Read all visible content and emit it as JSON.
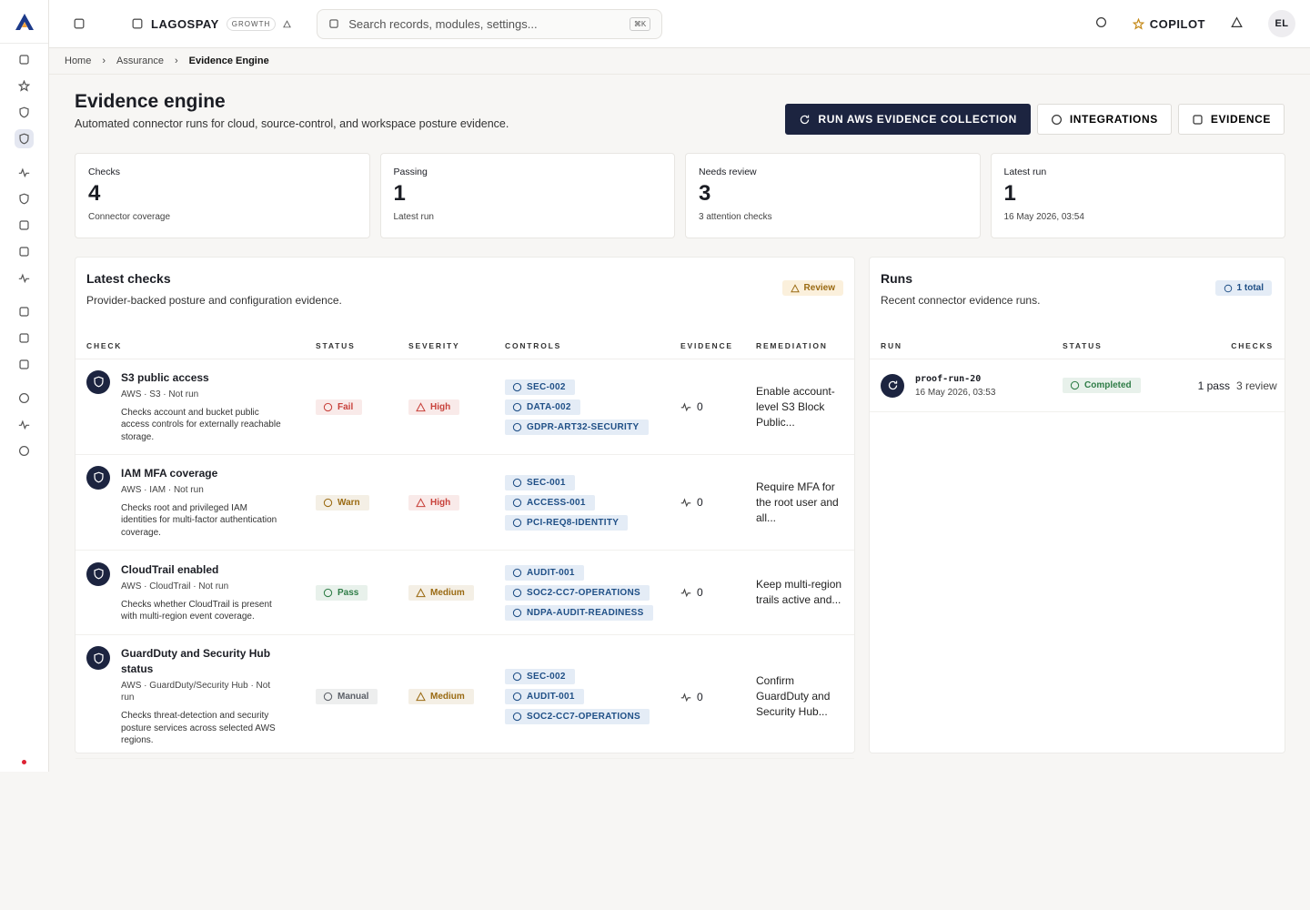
{
  "app": {
    "brand": "LAGOSPAY",
    "plan": "GROWTH",
    "search": "Search records, modules, settings...",
    "shortcut": "⌘K",
    "copilot": "COPILOT",
    "avatar": "EL"
  },
  "breadcrumb": [
    "Home",
    "Assurance",
    "Evidence Engine"
  ],
  "header": {
    "title": "Evidence engine",
    "subtitle": "Automated connector runs for cloud, source-control, and workspace posture evidence.",
    "actions": [
      "RUN AWS EVIDENCE COLLECTION",
      "INTEGRATIONS",
      "EVIDENCE"
    ]
  },
  "stats": [
    {
      "label": "Checks",
      "value": 4,
      "note": "Connector coverage"
    },
    {
      "label": "Passing",
      "value": 1,
      "note": "Latest run"
    },
    {
      "label": "Needs review",
      "value": 3,
      "note": "3 attention checks"
    },
    {
      "label": "Latest run",
      "value": 1,
      "note": "16 May 2026, 03:54"
    }
  ],
  "checks": {
    "title": "Latest checks",
    "subtitle": "Provider-backed posture and configuration evidence.",
    "badge": "Review",
    "columns": [
      "CHECK",
      "STATUS",
      "SEVERITY",
      "CONTROLS",
      "EVIDENCE",
      "REMEDIATION"
    ],
    "rows": [
      {
        "name": "S3 public access",
        "meta": "AWS · S3 · Not run",
        "description": "Checks account and bucket public access controls for externally reachable storage.",
        "status": {
          "label": "Fail",
          "color": "#c8413b"
        },
        "severity": {
          "label": "High",
          "color": "#c8413b"
        },
        "controls": [
          "SEC-002",
          "DATA-002",
          "GDPR-ART32-SECURITY"
        ],
        "evidence": 0,
        "remediation": "Enable account-level S3 Block Public..."
      },
      {
        "name": "IAM MFA coverage",
        "meta": "AWS · IAM · Not run",
        "description": "Checks root and privileged IAM identities for multi-factor authentication coverage.",
        "status": {
          "label": "Warn",
          "color": "#9a6a12"
        },
        "severity": {
          "label": "High",
          "color": "#c8413b"
        },
        "controls": [
          "SEC-001",
          "ACCESS-001",
          "PCI-REQ8-IDENTITY"
        ],
        "evidence": 0,
        "remediation": "Require MFA for the root user and all..."
      },
      {
        "name": "CloudTrail enabled",
        "meta": "AWS · CloudTrail · Not run",
        "description": "Checks whether CloudTrail is present with multi-region event coverage.",
        "status": {
          "label": "Pass",
          "color": "#2f7d47"
        },
        "severity": {
          "label": "Medium",
          "color": "#9a6a12"
        },
        "controls": [
          "AUDIT-001",
          "SOC2-CC7-OPERATIONS",
          "NDPA-AUDIT-READINESS"
        ],
        "evidence": 0,
        "remediation": "Keep multi-region trails active and..."
      },
      {
        "name": "GuardDuty and Security Hub status",
        "meta": "AWS · GuardDuty/Security Hub · Not run",
        "description": "Checks threat-detection and security posture services across selected AWS regions.",
        "status": {
          "label": "Manual",
          "color": "#5c6068"
        },
        "severity": {
          "label": "Medium",
          "color": "#9a6a12"
        },
        "controls": [
          "SEC-002",
          "AUDIT-001",
          "SOC2-CC7-OPERATIONS"
        ],
        "evidence": 0,
        "remediation": "Confirm GuardDuty and Security Hub..."
      }
    ]
  },
  "runs": {
    "title": "Runs",
    "subtitle": "Recent connector evidence runs.",
    "badge": "1 total",
    "columns": [
      "RUN",
      "STATUS",
      "CHECKS"
    ],
    "rows": [
      {
        "id": "proof-run-20",
        "time": "16 May 2026, 03:53",
        "status": {
          "label": "Completed",
          "color": "#2f7d47"
        },
        "passed": "1 pass",
        "review": "3 review"
      }
    ]
  }
}
